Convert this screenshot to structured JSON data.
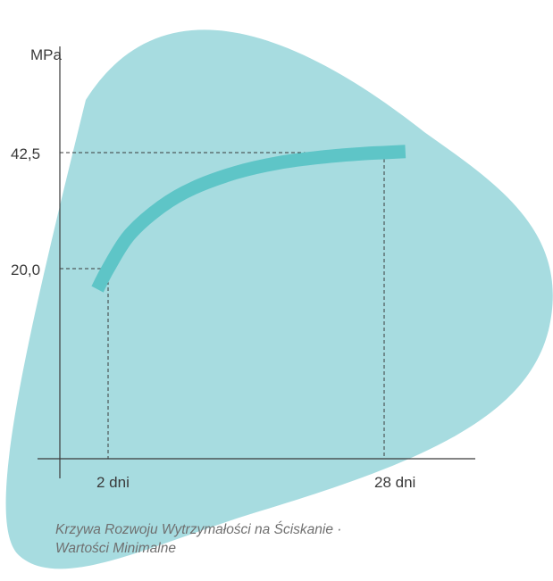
{
  "colors": {
    "background_shape": "#a7dce0",
    "curve": "#5ec5c7",
    "axis": "#3a3a3a",
    "guide": "#3a3a3a",
    "text": "#3a3a3a",
    "caption": "#6f6f6f"
  },
  "chart_data": {
    "type": "line",
    "title": "",
    "ylabel": "MPa",
    "xlabel": "",
    "x_ticks": [
      "2 dni",
      "28 dni"
    ],
    "y_ticks": [
      "20,0",
      "42,5"
    ],
    "ylim": [
      0,
      60
    ],
    "grid": false,
    "series": [
      {
        "x": [
          1,
          2,
          4,
          7,
          10,
          14,
          18,
          22,
          26,
          28,
          30
        ],
        "y": [
          16,
          20.0,
          26.5,
          32,
          35.6,
          38.6,
          40.5,
          41.6,
          42.3,
          42.5,
          42.7
        ]
      }
    ],
    "guides": [
      {
        "x": 2,
        "y": 20.0
      },
      {
        "x": 28,
        "y": 42.5
      }
    ]
  },
  "caption": {
    "line1": "Krzywa Rozwoju Wytrzymałości na Ściskanie ·",
    "line2": "Wartości Minimalne"
  }
}
